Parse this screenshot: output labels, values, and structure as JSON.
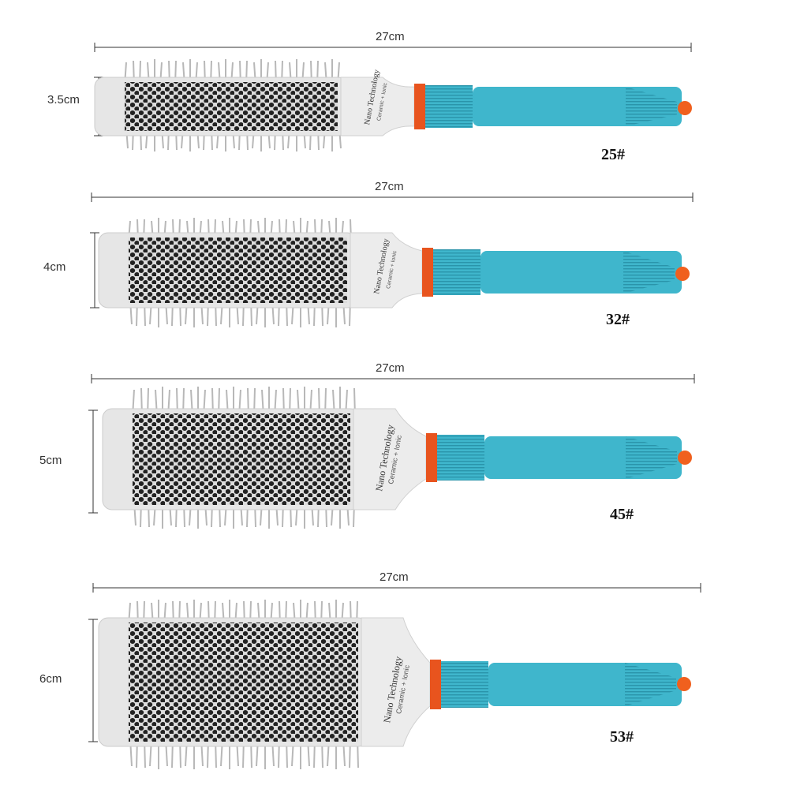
{
  "colors": {
    "handle": "#3fb6cc",
    "band": "#e8541e",
    "tip": "#f0601e",
    "barrel": "#e6e6e6",
    "bristle": "#b8b8b8",
    "line": "#333333"
  },
  "brand_text": {
    "line1": "Nano Technology",
    "line2": "Ceramic + Ionic"
  },
  "brushes": [
    {
      "length": "27cm",
      "diameter": "3.5cm",
      "size": "25#"
    },
    {
      "length": "27cm",
      "diameter": "4cm",
      "size": "32#"
    },
    {
      "length": "27cm",
      "diameter": "5cm",
      "size": "45#"
    },
    {
      "length": "27cm",
      "diameter": "6cm",
      "size": "53#"
    }
  ]
}
